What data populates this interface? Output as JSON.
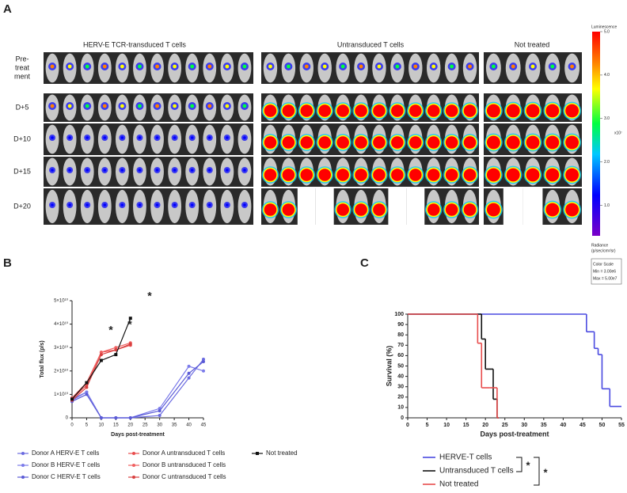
{
  "panel_a": {
    "label": "A",
    "groups": [
      "HERV-E TCR-transduced T cells",
      "Untransduced T cells",
      "Not treated"
    ],
    "rows": [
      [
        "Pre-",
        "treat",
        "ment"
      ],
      [
        "D+5"
      ],
      [
        "D+10"
      ],
      [
        "D+15"
      ],
      [
        "D+20"
      ]
    ],
    "color_scale": {
      "title": "Luminescence",
      "multiplier": "x10⁷",
      "unit_line1": "Radiance",
      "unit_line2": "(p/sec/cm²/sr)",
      "ticks": [
        {
          "value": 5,
          "label": "5.0"
        },
        {
          "value": 4,
          "label": "4.0"
        },
        {
          "value": 3,
          "label": "3.0"
        },
        {
          "value": 2,
          "label": "2.0"
        },
        {
          "value": 1,
          "label": "1.0"
        }
      ],
      "lim": [
        0.3,
        5
      ],
      "box": [
        "Color Scale",
        "Min = 3.00e6",
        "Max = 5.00e7"
      ]
    }
  },
  "chart_data": [
    {
      "type": "line",
      "panel_label": "B",
      "y_label": "Total flux (p/s)",
      "x_label": "Days post-treatment",
      "xlim": [
        0,
        45
      ],
      "xticks": [
        0,
        5,
        10,
        15,
        20,
        25,
        30,
        35,
        40,
        45
      ],
      "ylim": [
        0,
        50000000000
      ],
      "yticks": [
        0,
        {
          "value": 10000000000,
          "label": "1×10¹⁰"
        },
        {
          "value": 20000000000,
          "label": "2×10¹⁰"
        },
        {
          "value": 30000000000,
          "label": "3×10¹⁰"
        },
        {
          "value": 40000000000,
          "label": "4×10¹⁰"
        },
        {
          "value": 50000000000,
          "label": "5×10¹⁰"
        }
      ],
      "annotations": [
        "*",
        "*",
        "*"
      ],
      "series": [
        {
          "name": "Donor A HERV-E T cells",
          "color": "#6a6ae0",
          "marker": "circle",
          "x": [
            0,
            5,
            10,
            15,
            20,
            30,
            40,
            45
          ],
          "values": [
            7500000000,
            11000000000,
            0,
            0,
            0,
            1000000000,
            17000000000,
            25000000000
          ]
        },
        {
          "name": "Donor B HERV-E T cells",
          "color": "#7b7bea",
          "marker": "circle",
          "x": [
            0,
            5,
            10,
            15,
            20,
            30,
            40,
            45
          ],
          "values": [
            8000000000,
            11000000000,
            0,
            0,
            0,
            4000000000,
            22000000000,
            20000000000
          ]
        },
        {
          "name": "Donor C HERV-E T cells",
          "color": "#5a5ad6",
          "marker": "circle",
          "x": [
            0,
            5,
            10,
            15,
            20,
            30,
            40,
            45
          ],
          "values": [
            7000000000,
            10000000000,
            0,
            0,
            0,
            3000000000,
            19000000000,
            24000000000
          ]
        },
        {
          "name": "Donor A untransduced T cells",
          "color": "#e84c4c",
          "marker": "circle",
          "x": [
            0,
            5,
            10,
            15,
            20
          ],
          "values": [
            8000000000,
            14000000000,
            28000000000,
            29000000000,
            31000000000
          ]
        },
        {
          "name": "Donor B untransduced T cells",
          "color": "#f06060",
          "marker": "circle",
          "x": [
            0,
            5,
            10,
            15,
            20
          ],
          "values": [
            8500000000,
            15000000000,
            28000000000,
            30000000000,
            32000000000
          ]
        },
        {
          "name": "Donor C untransduced T cells",
          "color": "#d84040",
          "marker": "circle",
          "x": [
            0,
            5,
            10,
            15,
            20
          ],
          "values": [
            7500000000,
            13000000000,
            27000000000,
            29000000000,
            31500000000
          ]
        },
        {
          "name": "Not treated",
          "color": "#111111",
          "marker": "square",
          "x": [
            0,
            5,
            10,
            15,
            20
          ],
          "values": [
            8000000000,
            15000000000,
            24500000000,
            27000000000,
            42500000000
          ]
        }
      ]
    },
    {
      "type": "step",
      "panel_label": "C",
      "y_label": "Survival (%)",
      "x_label": "Days post-treatment",
      "xlim": [
        0,
        55
      ],
      "xticks": [
        0,
        5,
        10,
        15,
        20,
        25,
        30,
        35,
        40,
        45,
        50,
        55
      ],
      "ylim": [
        0,
        100
      ],
      "yticks": [
        0,
        10,
        20,
        30,
        40,
        50,
        60,
        70,
        80,
        90,
        100
      ],
      "annotations": [
        "*",
        "*"
      ],
      "series": [
        {
          "name": "HERVE-T cells",
          "color": "#4a4ae0",
          "x": [
            0,
            46,
            48,
            49,
            50,
            52
          ],
          "values": [
            100,
            83,
            67,
            61,
            28,
            11
          ]
        },
        {
          "name": "Untransduced T cells",
          "color": "#111111",
          "x": [
            0,
            19,
            20,
            22,
            23
          ],
          "values": [
            100,
            76,
            47,
            18,
            0
          ]
        },
        {
          "name": "Not treated",
          "color": "#e84c4c",
          "x": [
            0,
            18,
            19,
            21,
            23
          ],
          "values": [
            100,
            72,
            29,
            29,
            0
          ]
        }
      ]
    }
  ]
}
